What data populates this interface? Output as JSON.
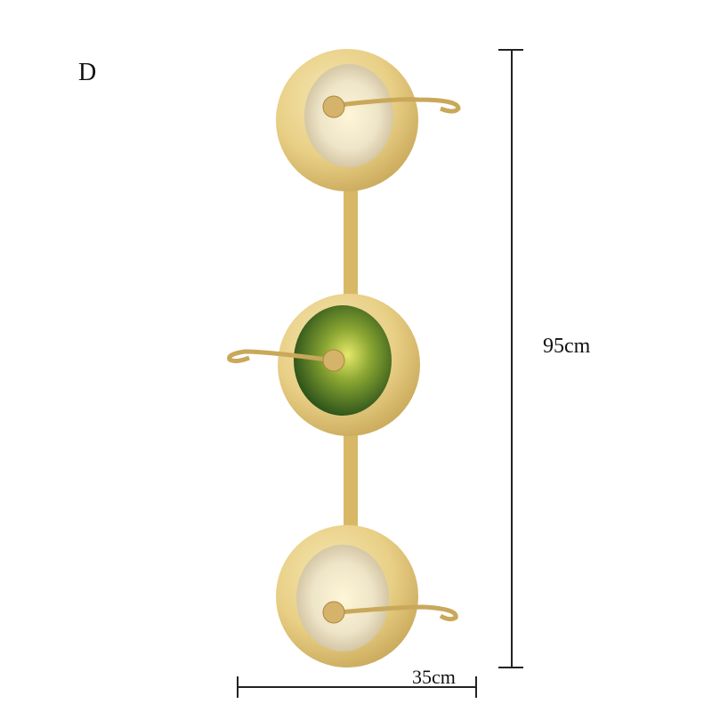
{
  "variant_label": "D",
  "height_label": "95cm",
  "width_label": "35cm"
}
